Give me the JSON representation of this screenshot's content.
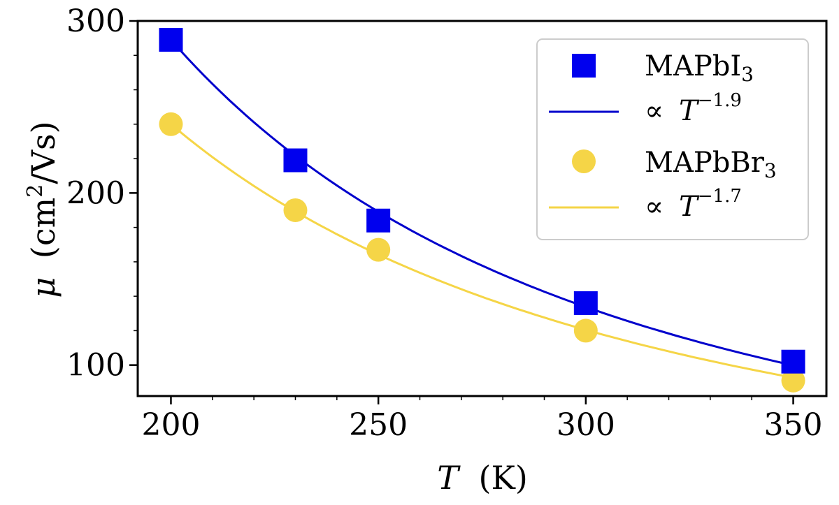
{
  "chart_data": {
    "type": "scatter",
    "xlabel": {
      "var": "T",
      "unit": "(K)"
    },
    "ylabel": {
      "var": "μ",
      "unit_open": "(cm",
      "unit_sup": "2",
      "unit_close": "/Vs)"
    },
    "xlim": [
      192,
      358
    ],
    "ylim": [
      82,
      300
    ],
    "xticks": [
      200,
      250,
      300,
      350
    ],
    "yticks": [
      100,
      200,
      300
    ],
    "x_minor_step": 10,
    "y_minor_step": 20,
    "grid": false,
    "legend_position": "top-right",
    "series": [
      {
        "name": "MAPbI₃",
        "label_base": "MAPbI",
        "label_sub": "3",
        "kind": "points",
        "marker": "square",
        "color": "#0000ee",
        "x": [
          200,
          230,
          250,
          300,
          350
        ],
        "y": [
          289,
          219,
          184,
          136,
          102
        ]
      },
      {
        "name": "∝ T^−1.9",
        "label_prefix": "∝",
        "label_var": "T",
        "label_sup": "−1.9",
        "kind": "fit",
        "color": "#0000cc",
        "exponent": -1.9,
        "amplitude_at_200": 289
      },
      {
        "name": "MAPbBr₃",
        "label_base": "MAPbBr",
        "label_sub": "3",
        "kind": "points",
        "marker": "circle",
        "color": "#f5d547",
        "x": [
          200,
          230,
          250,
          300,
          350
        ],
        "y": [
          240,
          190,
          167,
          120,
          91
        ]
      },
      {
        "name": "∝ T^−1.7",
        "label_prefix": "∝",
        "label_var": "T",
        "label_sup": "−1.7",
        "kind": "fit",
        "color": "#f5d547",
        "exponent": -1.7,
        "amplitude_at_200": 240
      }
    ]
  }
}
